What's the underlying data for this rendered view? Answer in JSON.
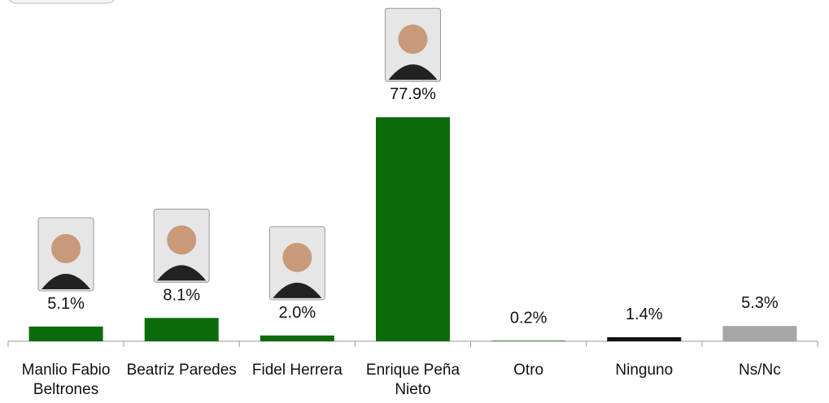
{
  "chart_data": {
    "type": "bar",
    "categories": [
      "Manlio Fabio Beltrones",
      "Beatriz Paredes",
      "Fidel Herrera",
      "Enrique Peña Nieto",
      "Otro",
      "Ninguno",
      "Ns/Nc"
    ],
    "values": [
      5.1,
      8.1,
      2.0,
      77.9,
      0.2,
      1.4,
      5.3
    ],
    "value_labels": [
      "5.1%",
      "8.1%",
      "2.0%",
      "77.9%",
      "0.2%",
      "1.4%",
      "5.3%"
    ],
    "colors": [
      "#0b6b0b",
      "#0b6b0b",
      "#0b6b0b",
      "#0b6b0b",
      "#0b6b0b",
      "#111111",
      "#a6a6a6"
    ]
  }
}
